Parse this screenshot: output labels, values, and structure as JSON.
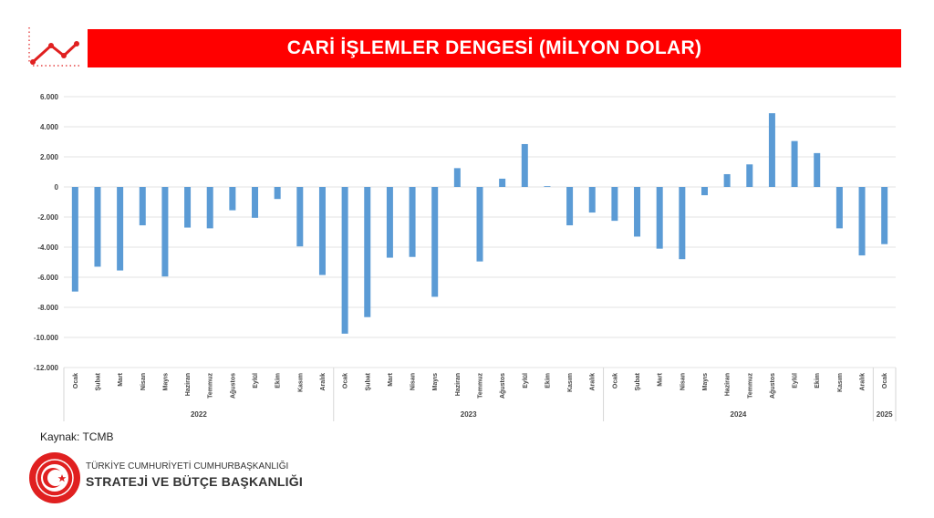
{
  "header": {
    "title": "CARİ İŞLEMLER DENGESİ (MİLYON DOLAR)"
  },
  "colors": {
    "bar": "#5b9bd5",
    "title_bg": "#ff0000",
    "logo": "#e02020"
  },
  "chart_data": {
    "type": "bar",
    "title": "CARİ İŞLEMLER DENGESİ (MİLYON DOLAR)",
    "ylim": [
      -12000,
      6000
    ],
    "yticks": [
      "6.000",
      "4.000",
      "2.000",
      "0",
      "-2.000",
      "-4.000",
      "-6.000",
      "-8.000",
      "-10.000",
      "-12.000"
    ],
    "ytick_values": [
      6000,
      4000,
      2000,
      0,
      -2000,
      -4000,
      -6000,
      -8000,
      -10000,
      -12000
    ],
    "grid": true,
    "categories": [
      "Ocak",
      "Şubat",
      "Mart",
      "Nisan",
      "Mayıs",
      "Haziran",
      "Temmuz",
      "Ağustos",
      "Eylül",
      "Ekim",
      "Kasım",
      "Aralık",
      "Ocak",
      "Şubat",
      "Mart",
      "Nisan",
      "Mayıs",
      "Haziran",
      "Temmuz",
      "Ağustos",
      "Eylül",
      "Ekim",
      "Kasım",
      "Aralık",
      "Ocak",
      "Şubat",
      "Mart",
      "Nisan",
      "Mayıs",
      "Haziran",
      "Temmuz",
      "Ağustos",
      "Eylül",
      "Ekim",
      "Kasım",
      "Aralık",
      "Ocak"
    ],
    "values": [
      -6950,
      -5300,
      -5550,
      -2550,
      -5950,
      -2700,
      -2750,
      -1550,
      -2050,
      -800,
      -3950,
      -5850,
      -9750,
      -8650,
      -4700,
      -4650,
      -7300,
      1250,
      -4950,
      550,
      2850,
      50,
      -2550,
      -1700,
      -2250,
      -3300,
      -4100,
      -4800,
      -550,
      850,
      1500,
      4900,
      3050,
      2250,
      -2750,
      -4550,
      -3800
    ],
    "groups": [
      {
        "label": "2022",
        "count": 12
      },
      {
        "label": "2023",
        "count": 12
      },
      {
        "label": "2024",
        "count": 12
      },
      {
        "label": "2025",
        "count": 1
      }
    ]
  },
  "footer": {
    "source": "Kaynak: TCMB",
    "org_line1": "TÜRKİYE CUMHURİYETİ CUMHURBAŞKANLIĞI",
    "org_line2": "STRATEJİ VE BÜTÇE BAŞKANLIĞI"
  }
}
